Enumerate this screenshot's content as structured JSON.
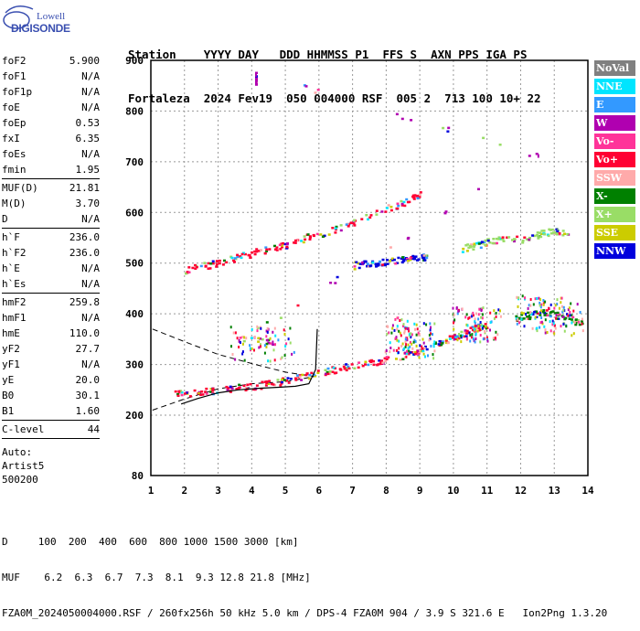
{
  "logo": {
    "line1": "Lowell",
    "line2": "DIGISONDE"
  },
  "header": {
    "labels": "Station    YYYY DAY   DDD HHMMSS P1  FFS S  AXN PPS IGA PS",
    "values": "Fortaleza  2024 Fev19  050 004000 RSF  005 2  713 100 10+ 22"
  },
  "params": {
    "group1": [
      {
        "label": "foF2",
        "value": "5.900"
      },
      {
        "label": "foF1",
        "value": "N/A"
      },
      {
        "label": "foF1p",
        "value": "N/A"
      },
      {
        "label": "foE",
        "value": "N/A"
      },
      {
        "label": "foEp",
        "value": "0.53"
      },
      {
        "label": "fxI",
        "value": "6.35"
      },
      {
        "label": "foEs",
        "value": "N/A"
      },
      {
        "label": "fmin",
        "value": "1.95"
      }
    ],
    "group2": [
      {
        "label": "MUF(D)",
        "value": "21.81"
      },
      {
        "label": "M(D)",
        "value": "3.70"
      },
      {
        "label": "D",
        "value": "N/A"
      }
    ],
    "group3": [
      {
        "label": "h`F",
        "value": "236.0"
      },
      {
        "label": "h`F2",
        "value": "236.0"
      },
      {
        "label": "h`E",
        "value": "N/A"
      },
      {
        "label": "h`Es",
        "value": "N/A"
      }
    ],
    "group4": [
      {
        "label": "hmF2",
        "value": "259.8"
      },
      {
        "label": "hmF1",
        "value": "N/A"
      },
      {
        "label": "hmE",
        "value": "110.0"
      },
      {
        "label": "yF2",
        "value": "27.7"
      },
      {
        "label": "yF1",
        "value": "N/A"
      },
      {
        "label": "yE",
        "value": "20.0"
      },
      {
        "label": "B0",
        "value": "30.1"
      },
      {
        "label": "B1",
        "value": "1.60"
      }
    ],
    "group5": [
      {
        "label": "C-level",
        "value": "44"
      }
    ],
    "auto_lines": [
      "Auto:",
      "Artist5",
      "500200"
    ]
  },
  "legend": [
    {
      "label": "NoVal",
      "color": "#808080"
    },
    {
      "label": "NNE",
      "color": "#00e5ff"
    },
    {
      "label": "E",
      "color": "#3399ff"
    },
    {
      "label": "W",
      "color": "#b000b0"
    },
    {
      "label": "Vo-",
      "color": "#ff3399"
    },
    {
      "label": "Vo+",
      "color": "#ff0033"
    },
    {
      "label": "SSW",
      "color": "#ffaaaa"
    },
    {
      "label": "X-",
      "color": "#008000"
    },
    {
      "label": "X+",
      "color": "#99dd66"
    },
    {
      "label": "SSE",
      "color": "#cccc00"
    },
    {
      "label": "NNW",
      "color": "#0000dd"
    }
  ],
  "bottom": {
    "line1": "D     100  200  400  600  800 1000 1500 3000 [km]",
    "line2": "MUF    6.2  6.3  6.7  7.3  8.1  9.3 12.8 21.8 [MHz]",
    "line3": "FZA0M_2024050004000.RSF / 260fx256h 50 kHz 5.0 km / DPS-4 FZA0M 904 / 3.9 S 321.6 E   Ion2Png 1.3.20"
  },
  "chart_data": {
    "type": "scatter",
    "x_ticks": [
      "1",
      "2",
      "3",
      "4",
      "5",
      "6",
      "7",
      "8",
      "9",
      "10",
      "11",
      "12",
      "13",
      "14"
    ],
    "y_ticks": [
      "80",
      "200",
      "300",
      "400",
      "500",
      "600",
      "700",
      "800",
      "900"
    ],
    "xlim": [
      1,
      14
    ],
    "ylim": [
      80,
      900
    ],
    "grid": "dashed",
    "legend_position": "right",
    "traces": [
      {
        "name": "Vo+",
        "color": "#ff0033",
        "points": [
          [
            1.7,
            243
          ],
          [
            2.2,
            246
          ],
          [
            2.8,
            249
          ],
          [
            3.4,
            254
          ],
          [
            4.0,
            258
          ],
          [
            4.6,
            264
          ],
          [
            5.2,
            272
          ],
          [
            5.8,
            282
          ],
          [
            6.4,
            291
          ],
          [
            7.0,
            299
          ],
          [
            7.6,
            306
          ],
          [
            8.2,
            315
          ],
          [
            8.8,
            325
          ],
          [
            9.2,
            333
          ]
        ]
      },
      {
        "name": "Vo+",
        "color": "#ff0033",
        "points": [
          [
            2.0,
            487
          ],
          [
            2.6,
            496
          ],
          [
            3.2,
            505
          ],
          [
            3.8,
            518
          ],
          [
            4.4,
            528
          ],
          [
            5.0,
            538
          ],
          [
            5.6,
            552
          ],
          [
            6.4,
            567
          ],
          [
            7.0,
            580
          ],
          [
            8.0,
            610
          ],
          [
            8.6,
            622
          ],
          [
            9.0,
            640
          ]
        ]
      },
      {
        "name": "Vo+",
        "color": "#ff0033",
        "points": [
          [
            9.4,
            340
          ],
          [
            9.8,
            350
          ],
          [
            10.2,
            360
          ],
          [
            10.6,
            372
          ],
          [
            11.0,
            380
          ]
        ]
      },
      {
        "name": "NNW",
        "color": "#0000dd",
        "points": [
          [
            7.0,
            497
          ],
          [
            7.4,
            500
          ],
          [
            7.8,
            502
          ],
          [
            8.2,
            505
          ],
          [
            8.6,
            508
          ],
          [
            9.0,
            512
          ],
          [
            9.2,
            515
          ]
        ]
      },
      {
        "name": "X+",
        "color": "#99dd66",
        "points": [
          [
            10.2,
            530
          ],
          [
            10.6,
            535
          ],
          [
            11.0,
            545
          ],
          [
            11.4,
            548
          ],
          [
            12.2,
            550
          ],
          [
            12.6,
            560
          ],
          [
            13.0,
            565
          ],
          [
            13.4,
            555
          ]
        ]
      },
      {
        "name": "X-",
        "color": "#008000",
        "points": [
          [
            11.8,
            395
          ],
          [
            12.2,
            398
          ],
          [
            12.6,
            405
          ],
          [
            13.0,
            400
          ],
          [
            13.4,
            395
          ],
          [
            13.8,
            380
          ]
        ]
      },
      {
        "name": "W",
        "color": "#b000b0",
        "points": [
          [
            4.1,
            860
          ],
          [
            4.1,
            875
          ],
          [
            12.5,
            715
          ],
          [
            3.6,
            350
          ],
          [
            4.6,
            347
          ]
        ]
      }
    ],
    "profile": [
      [
        1.9,
        222
      ],
      [
        2.4,
        233
      ],
      [
        3.0,
        244
      ],
      [
        3.6,
        250
      ],
      [
        4.2,
        253
      ],
      [
        4.8,
        255
      ],
      [
        5.3,
        257
      ],
      [
        5.7,
        262
      ],
      [
        5.9,
        290
      ],
      [
        5.95,
        370
      ]
    ],
    "envelope_upper": [
      [
        1.05,
        370
      ],
      [
        2.0,
        345
      ],
      [
        3.0,
        320
      ],
      [
        4.0,
        302
      ],
      [
        5.0,
        285
      ],
      [
        5.9,
        276
      ]
    ],
    "envelope_lower": [
      [
        1.05,
        210
      ],
      [
        2.0,
        232
      ],
      [
        3.0,
        252
      ],
      [
        4.0,
        262
      ],
      [
        5.0,
        266
      ],
      [
        5.85,
        276
      ]
    ]
  }
}
